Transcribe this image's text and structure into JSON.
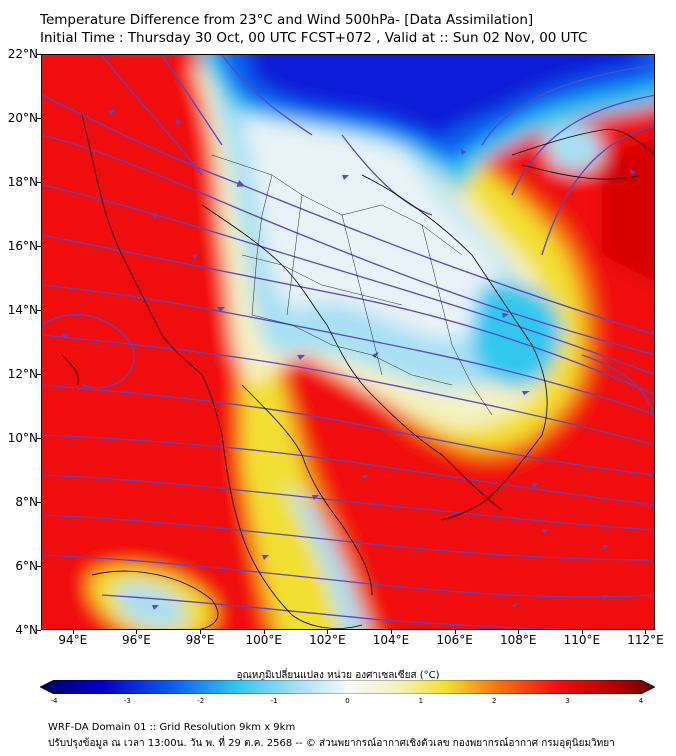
{
  "header": {
    "title_line1": "Temperature Difference from 23°C and Wind 500hPa- [Data Assimilation]",
    "title_line2": "Initial Time : Thursday 30 Oct, 00 UTC FCST+072 , Valid at ::  Sun 02 Nov, 00 UTC"
  },
  "map": {
    "lat_labels": [
      "22°N",
      "20°N",
      "18°N",
      "16°N",
      "14°N",
      "12°N",
      "10°N",
      "8°N",
      "6°N",
      "4°N"
    ],
    "lon_labels": [
      "94°E",
      "96°E",
      "98°E",
      "100°E",
      "102°E",
      "104°E",
      "106°E",
      "108°E",
      "110°E",
      "112°E"
    ],
    "lat_range": [
      4,
      22
    ],
    "lon_range": [
      93,
      112.3
    ],
    "field_colors": {
      "deep_red": "#d40000",
      "red": "#f01010",
      "orange": "#f47a10",
      "yellow": "#f2e030",
      "pale": "#f4f2c4",
      "white": "#f8f8f8",
      "light_blue": "#a8e0f4",
      "cyan": "#30c8ee",
      "blue": "#1060f0",
      "navy": "#0a1ad8",
      "streamline": "#5a46c8",
      "coastline": "#000000"
    }
  },
  "colorbar": {
    "label": "อุณหภูมิเปลี่ยนแปลง หน่วย องศาเซลเซียส (°C)",
    "ticks": [
      "-4",
      "-3",
      "-2",
      "-1",
      "0",
      "1",
      "2",
      "3",
      "4"
    ],
    "min": -4,
    "max": 4
  },
  "footer": {
    "line1": "WRF-DA Domain 01 :: Grid Resolution 9km x 9km",
    "line2": "ปรับปรุงข้อมูล ณ เวลา 13:00น. วัน พ. ที่ 29 ต.ค. 2568 -- © ส่วนพยากรณ์อากาศเชิงตัวเลข กองพยากรณ์อากาศ กรมอุตุนิยมวิทยา"
  }
}
